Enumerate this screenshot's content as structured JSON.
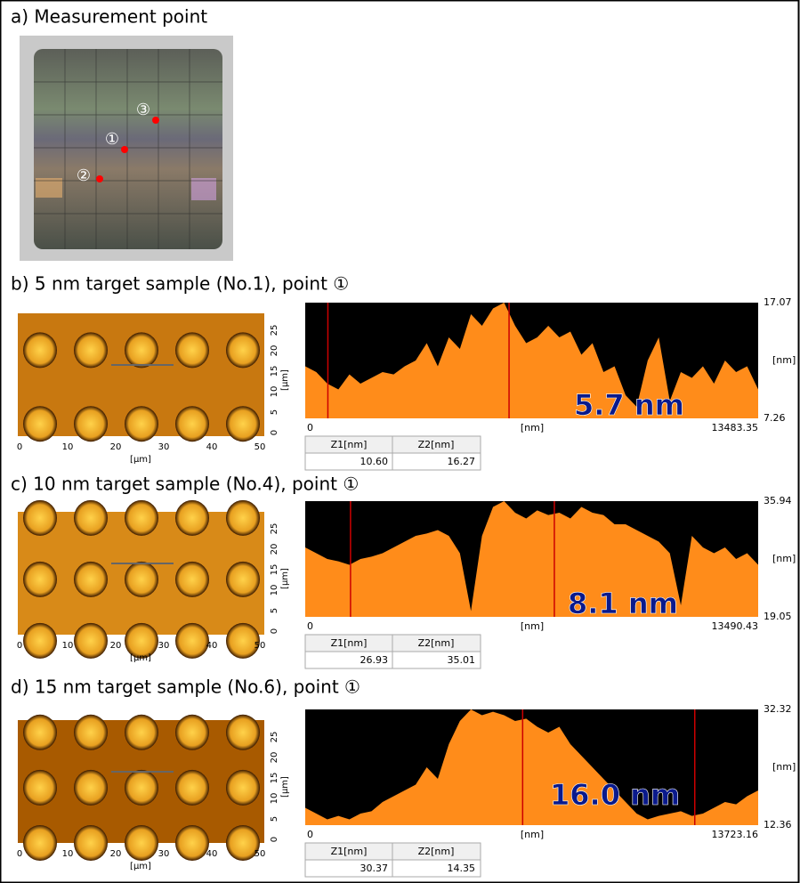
{
  "panel_a": {
    "title": "a) Measurement point",
    "markers": [
      "③",
      "①",
      "②"
    ]
  },
  "panels": [
    {
      "title": "b) 5 nm target sample (No.1), point ①",
      "image_xticks": [
        "0",
        "10",
        "20",
        "30",
        "40",
        "50"
      ],
      "image_yticks": [
        "0",
        "5",
        "10",
        "15",
        "20",
        "25"
      ],
      "image_xunit": "[µm]",
      "image_yunit": "[µm]",
      "profile_ymax": "17.07",
      "profile_yunit": "[nm]",
      "profile_ymin": "7.26",
      "profile_xstart": "0",
      "profile_xunit": "[nm]",
      "profile_xend": "13483.35",
      "table_headers": [
        "Z1[nm]",
        "Z2[nm]"
      ],
      "table_values": [
        "10.60",
        "16.27"
      ],
      "annotation": "5.7 nm"
    },
    {
      "title": "c) 10 nm target sample (No.4), point ①",
      "image_xticks": [
        "0",
        "10",
        "20",
        "30",
        "40",
        "50"
      ],
      "image_yticks": [
        "0",
        "5",
        "10",
        "15",
        "20",
        "25"
      ],
      "image_xunit": "[µm]",
      "image_yunit": "[µm]",
      "profile_ymax": "35.94",
      "profile_yunit": "[nm]",
      "profile_ymin": "19.05",
      "profile_xstart": "0",
      "profile_xunit": "[nm]",
      "profile_xend": "13490.43",
      "table_headers": [
        "Z1[nm]",
        "Z2[nm]"
      ],
      "table_values": [
        "26.93",
        "35.01"
      ],
      "annotation": "8.1 nm"
    },
    {
      "title": "d) 15 nm target sample (No.6), point ①",
      "image_xticks": [
        "0",
        "10",
        "20",
        "30",
        "40",
        "50"
      ],
      "image_yticks": [
        "0",
        "5",
        "10",
        "15",
        "20",
        "25"
      ],
      "image_xunit": "[µm]",
      "image_yunit": "[µm]",
      "profile_ymax": "32.32",
      "profile_yunit": "[nm]",
      "profile_ymin": "12.36",
      "profile_xstart": "0",
      "profile_xunit": "[nm]",
      "profile_xend": "13723.16",
      "table_headers": [
        "Z1[nm]",
        "Z2[nm]"
      ],
      "table_values": [
        "30.37",
        "14.35"
      ],
      "annotation": "16.0 nm"
    }
  ]
}
